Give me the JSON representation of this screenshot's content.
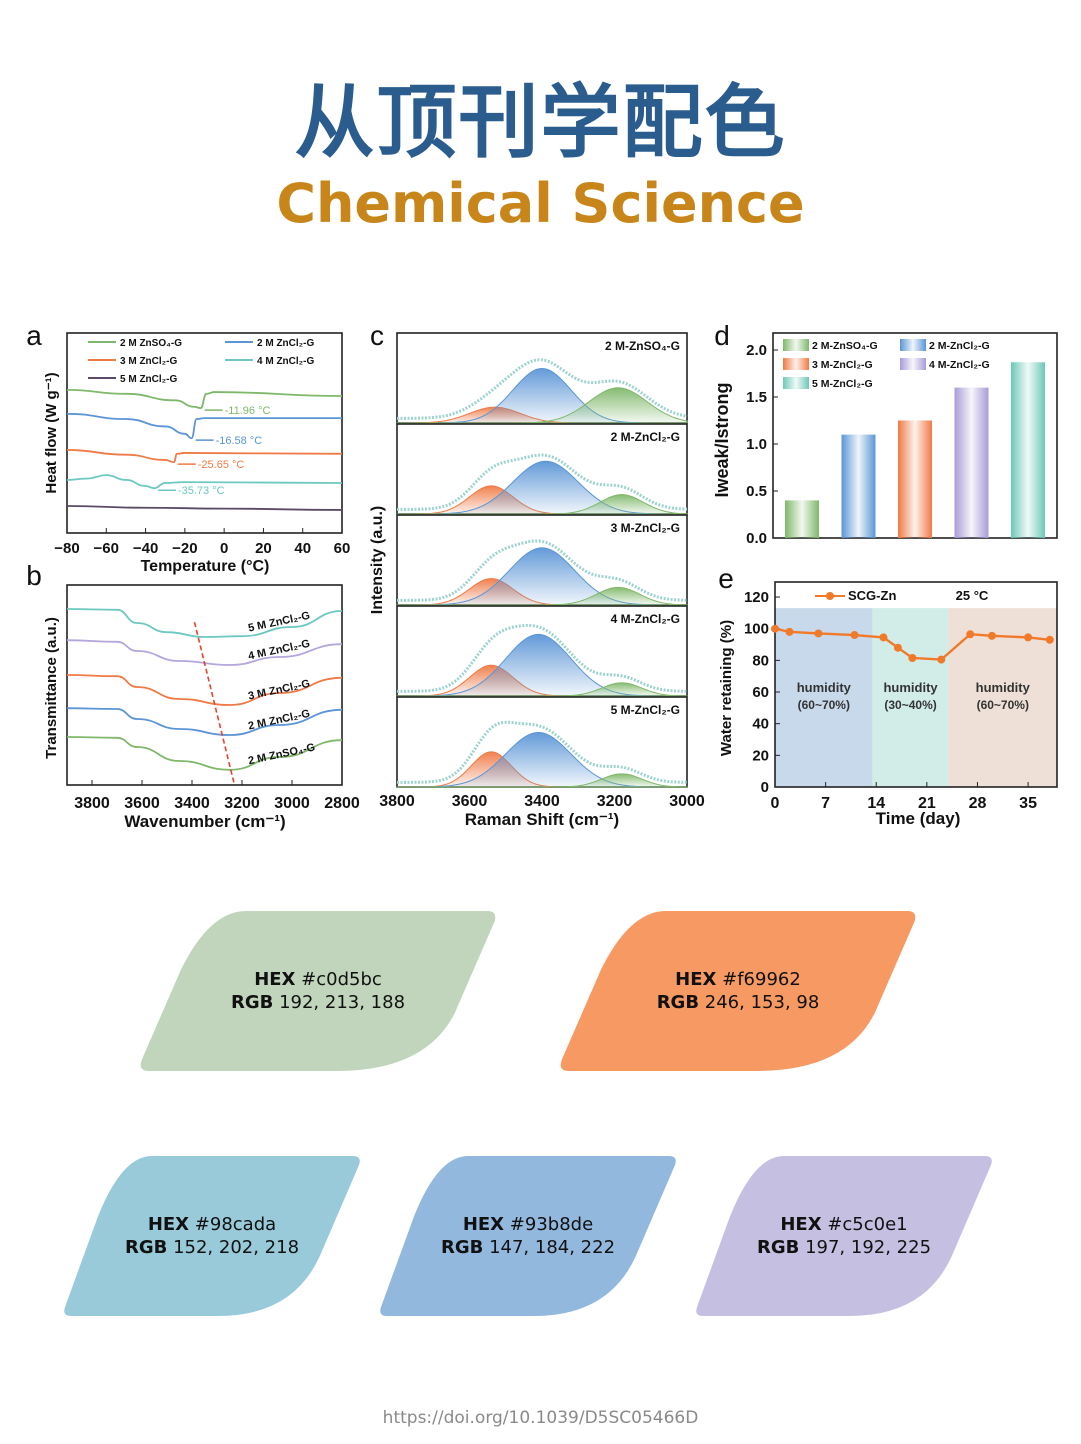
{
  "header": {
    "title_cn": "从顶刊学配色",
    "title_en": "Chemical Science"
  },
  "colors": {
    "title": "#2b5c8e",
    "subtitle": "#c8861a"
  },
  "chart_data": [
    {
      "panel": "a",
      "type": "line",
      "xlabel": "Temperature (°C)",
      "ylabel": "Heat flow (W g⁻¹)",
      "xlim": [
        -80,
        60
      ],
      "xticks": [
        -80,
        -60,
        -40,
        -20,
        0,
        20,
        40,
        60
      ],
      "series": [
        {
          "name": "2 M ZnSO₄-G",
          "color": "#7fb86a",
          "points": [
            [
              -80,
              3.29
            ],
            [
              -50,
              3.2
            ],
            [
              -25,
              3.05
            ],
            [
              -15,
              2.9
            ],
            [
              -12,
              2.87
            ],
            [
              -9,
              3.2
            ],
            [
              -5,
              3.24
            ],
            [
              60,
              3.15
            ]
          ],
          "annotation": "-11.96 °C",
          "annot_x": -11.96
        },
        {
          "name": "2 M ZnCl₂-G",
          "color": "#5b95d6",
          "points": [
            [
              -80,
              2.74
            ],
            [
              -50,
              2.62
            ],
            [
              -30,
              2.45
            ],
            [
              -20,
              2.28
            ],
            [
              -16.6,
              2.18
            ],
            [
              -14,
              2.62
            ],
            [
              -10,
              2.64
            ],
            [
              60,
              2.64
            ]
          ],
          "annotation": "-16.58 °C",
          "annot_x": -16.58
        },
        {
          "name": "3 M ZnCl₂-G",
          "color": "#f07a45",
          "points": [
            [
              -80,
              1.91
            ],
            [
              -50,
              1.8
            ],
            [
              -30,
              1.68
            ],
            [
              -25.6,
              1.63
            ],
            [
              -24,
              1.82
            ],
            [
              -20,
              1.84
            ],
            [
              60,
              1.82
            ]
          ],
          "annotation": "-25.65 °C",
          "annot_x": -25.65
        },
        {
          "name": "4 M ZnCl₂-G",
          "color": "#6cc8c0",
          "points": [
            [
              -80,
              1.22
            ],
            [
              -70,
              1.25
            ],
            [
              -60,
              1.33
            ],
            [
              -50,
              1.22
            ],
            [
              -40,
              1.08
            ],
            [
              -35.7,
              1.03
            ],
            [
              -30,
              1.15
            ],
            [
              -20,
              1.17
            ],
            [
              60,
              1.15
            ]
          ],
          "annotation": "-35.73 °C",
          "annot_x": -35.73
        },
        {
          "name": "5 M ZnCl₂-G",
          "color": "#5a4a66",
          "points": [
            [
              -80,
              0.62
            ],
            [
              -40,
              0.58
            ],
            [
              0,
              0.56
            ],
            [
              60,
              0.53
            ]
          ]
        }
      ]
    },
    {
      "panel": "b",
      "type": "line",
      "xlabel": "Wavenumber (cm⁻¹)",
      "ylabel": "Transmittance (a.u.)",
      "xlim": [
        3900,
        2800
      ],
      "xticks": [
        3800,
        3600,
        3400,
        3200,
        3000,
        2800
      ],
      "series": [
        {
          "name": "5 M ZnCl₂-G",
          "color": "#6cc8c0",
          "points": [
            [
              3900,
              4.4
            ],
            [
              3700,
              4.38
            ],
            [
              3620,
              4.05
            ],
            [
              3500,
              3.82
            ],
            [
              3350,
              3.7
            ],
            [
              3200,
              3.72
            ],
            [
              3000,
              3.95
            ],
            [
              2800,
              4.35
            ]
          ]
        },
        {
          "name": "4 M ZnCl₂-G",
          "color": "#b4a6dc",
          "points": [
            [
              3900,
              3.62
            ],
            [
              3700,
              3.58
            ],
            [
              3620,
              3.35
            ],
            [
              3450,
              3.1
            ],
            [
              3250,
              3.0
            ],
            [
              3050,
              3.2
            ],
            [
              2800,
              3.52
            ]
          ]
        },
        {
          "name": "3 M ZnCl₂-G",
          "color": "#f07a45",
          "points": [
            [
              3900,
              2.75
            ],
            [
              3700,
              2.72
            ],
            [
              3620,
              2.45
            ],
            [
              3450,
              2.15
            ],
            [
              3250,
              2.0
            ],
            [
              3050,
              2.3
            ],
            [
              2800,
              2.68
            ]
          ]
        },
        {
          "name": "2 M ZnCl₂-G",
          "color": "#5b95d6",
          "points": [
            [
              3900,
              1.92
            ],
            [
              3700,
              1.9
            ],
            [
              3620,
              1.65
            ],
            [
              3450,
              1.4
            ],
            [
              3250,
              1.25
            ],
            [
              3050,
              1.5
            ],
            [
              2800,
              1.88
            ]
          ]
        },
        {
          "name": "2 M ZnSO₄-G",
          "color": "#7fb86a",
          "points": [
            [
              3900,
              1.2
            ],
            [
              3700,
              1.18
            ],
            [
              3620,
              0.95
            ],
            [
              3450,
              0.6
            ],
            [
              3250,
              0.38
            ],
            [
              3050,
              0.7
            ],
            [
              2800,
              1.12
            ]
          ]
        }
      ],
      "guide_line": {
        "color": "#e0452b",
        "from": [
          3390,
          4.07
        ],
        "to": [
          3230,
          0
        ]
      }
    },
    {
      "panel": "c",
      "type": "area",
      "xlabel": "Raman Shift (cm⁻¹)",
      "ylabel": "Intensity (a.u.)",
      "xlim": [
        3800,
        3000
      ],
      "xticks": [
        3800,
        3600,
        3400,
        3200,
        3000
      ],
      "component_colors": [
        "#f07a45",
        "#5b95d6",
        "#7fb86a"
      ],
      "subpanels": [
        {
          "name": "2 M-ZnSO₄-G",
          "peaks": [
            [
              3530,
              0.18,
              70
            ],
            [
              3400,
              0.62,
              80
            ],
            [
              3190,
              0.4,
              80
            ]
          ]
        },
        {
          "name": "2 M-ZnCl₂-G",
          "peaks": [
            [
              3540,
              0.32,
              60
            ],
            [
              3390,
              0.6,
              90
            ],
            [
              3180,
              0.22,
              60
            ]
          ]
        },
        {
          "name": "3 M-ZnCl₂-G",
          "peaks": [
            [
              3540,
              0.3,
              60
            ],
            [
              3400,
              0.65,
              90
            ],
            [
              3190,
              0.2,
              60
            ]
          ]
        },
        {
          "name": "4 M-ZnCl₂-G",
          "peaks": [
            [
              3540,
              0.35,
              60
            ],
            [
              3410,
              0.7,
              90
            ],
            [
              3180,
              0.15,
              55
            ]
          ]
        },
        {
          "name": "5 M-ZnCl₂-G",
          "peaks": [
            [
              3540,
              0.4,
              55
            ],
            [
              3410,
              0.62,
              90
            ],
            [
              3180,
              0.15,
              55
            ]
          ]
        }
      ]
    },
    {
      "panel": "d",
      "type": "bar",
      "ylabel": "Iweak/Istrong",
      "ylim": [
        0,
        2.2
      ],
      "yticks": [
        "0.0",
        "0.5",
        "1.0",
        "1.5",
        "2.0"
      ],
      "categories": [
        "2 M-ZnSO₄-G",
        "2 M-ZnCl₂-G",
        "3 M-ZnCl₂-G",
        "4 M-ZnCl₂-G",
        "5 M-ZnCl₂-G"
      ],
      "values": [
        0.4,
        1.1,
        1.25,
        1.6,
        1.87
      ],
      "colors": [
        "#7fb86a",
        "#5b95d6",
        "#f07a45",
        "#a99bd8",
        "#6cc8b8"
      ]
    },
    {
      "panel": "e",
      "type": "line",
      "xlabel": "Time (day)",
      "ylabel": "Water retaining (%)",
      "xlim": [
        0,
        39
      ],
      "ylim": [
        0,
        130
      ],
      "xticks": [
        0,
        7,
        14,
        21,
        28,
        35
      ],
      "yticks": [
        0,
        20,
        40,
        60,
        80,
        100,
        120
      ],
      "series": [
        {
          "name": "SCG-Zn",
          "color": "#f07a2a",
          "points": [
            [
              0,
              100
            ],
            [
              2,
              98
            ],
            [
              6,
              97
            ],
            [
              11,
              96
            ],
            [
              15,
              94.5
            ],
            [
              17,
              88
            ],
            [
              19,
              81.5
            ],
            [
              23,
              80.5
            ],
            [
              27,
              96.5
            ],
            [
              30,
              95.5
            ],
            [
              35,
              94.5
            ],
            [
              38,
              93
            ]
          ]
        }
      ],
      "annotation": "25 °C",
      "regions": [
        {
          "from": 0,
          "to": 13.5,
          "label1": "humidity",
          "label2": "(60~70%)",
          "color": "#c9d9ec"
        },
        {
          "from": 13.5,
          "to": 24,
          "label1": "humidity",
          "label2": "(30~40%)",
          "color": "#d2ede8"
        },
        {
          "from": 24,
          "to": 39,
          "label1": "humidity",
          "label2": "(60~70%)",
          "color": "#eee0d6"
        }
      ]
    }
  ],
  "panel_letters": [
    "a",
    "b",
    "c",
    "d",
    "e"
  ],
  "swatches": [
    {
      "hex_label": "HEX",
      "hex": "#c0d5bc",
      "rgb_label": "RGB",
      "rgb": "192, 213, 188"
    },
    {
      "hex_label": "HEX",
      "hex": "#f69962",
      "rgb_label": "RGB",
      "rgb": "246, 153, 98"
    },
    {
      "hex_label": "HEX",
      "hex": "#98cada",
      "rgb_label": "RGB",
      "rgb": "152, 202, 218"
    },
    {
      "hex_label": "HEX",
      "hex": "#93b8de",
      "rgb_label": "RGB",
      "rgb": "147, 184, 222"
    },
    {
      "hex_label": "HEX",
      "hex": "#c5c0e1",
      "rgb_label": "RGB",
      "rgb": "197, 192, 225"
    }
  ],
  "footer": {
    "doi": "https://doi.org/10.1039/D5SC05466D"
  }
}
